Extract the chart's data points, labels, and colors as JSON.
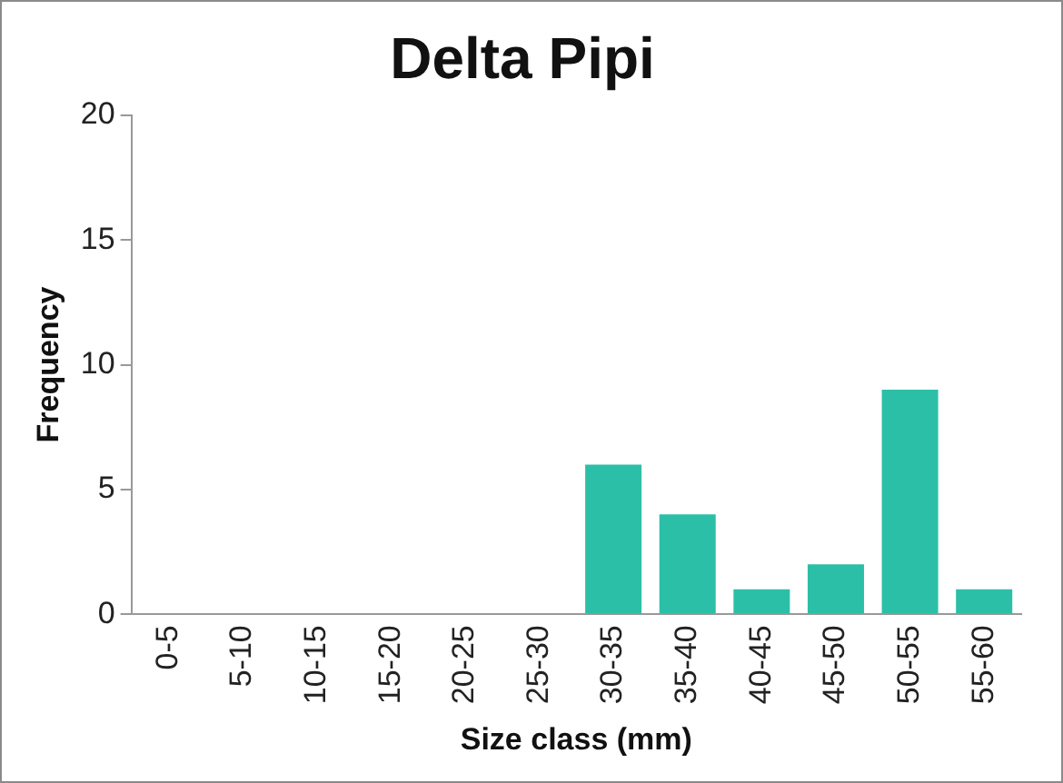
{
  "chart_data": {
    "type": "bar",
    "title": "Delta Pipi",
    "xlabel": "Size class (mm)",
    "ylabel": "Frequency",
    "categories": [
      "0-5",
      "5-10",
      "10-15",
      "15-20",
      "20-25",
      "25-30",
      "30-35",
      "35-40",
      "40-45",
      "45-50",
      "50-55",
      "55-60"
    ],
    "values": [
      0,
      0,
      0,
      0,
      0,
      0,
      6,
      4,
      1,
      2,
      9,
      1
    ],
    "color": "#2cbfa8",
    "ylim": [
      0,
      20
    ],
    "yticks": [
      0,
      5,
      10,
      15,
      20
    ],
    "grid": false,
    "legend": false
  }
}
